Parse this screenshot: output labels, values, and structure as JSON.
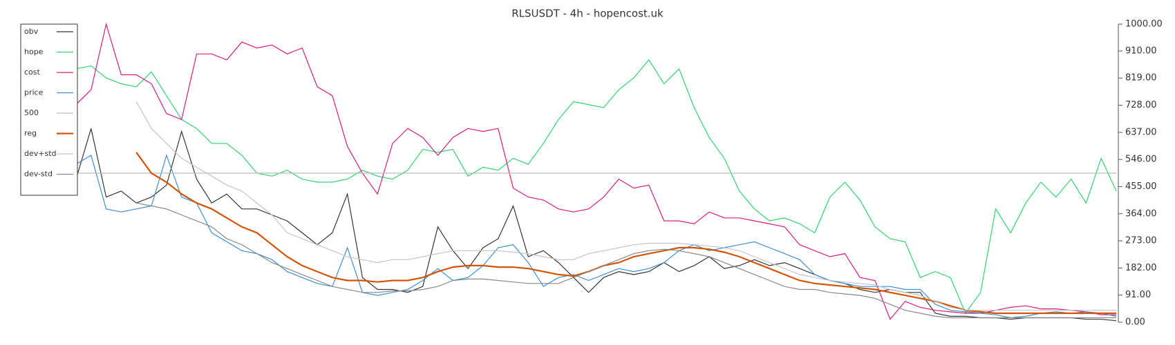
{
  "chart_data": {
    "type": "line",
    "title": "RLSUSDT - 4h - hopencost.uk",
    "ylim": [
      0,
      1000
    ],
    "yticks": [
      {
        "value": 0,
        "label": "0.00"
      },
      {
        "value": 91,
        "label": "91.00"
      },
      {
        "value": 182,
        "label": "182.00"
      },
      {
        "value": 273,
        "label": "273.00"
      },
      {
        "value": 364,
        "label": "364.00"
      },
      {
        "value": 455,
        "label": "455.00"
      },
      {
        "value": 546,
        "label": "546.00"
      },
      {
        "value": 637,
        "label": "637.00"
      },
      {
        "value": 728,
        "label": "728.00"
      },
      {
        "value": 819,
        "label": "819.00"
      },
      {
        "value": 910,
        "label": "910.00"
      },
      {
        "value": 1000,
        "label": "1000.00"
      }
    ],
    "legend": "upper left",
    "series": [
      {
        "name": "obv",
        "color": "#333333",
        "values": [
          480,
          650,
          420,
          440,
          400,
          420,
          460,
          640,
          480,
          400,
          430,
          380,
          380,
          360,
          340,
          300,
          260,
          300,
          430,
          150,
          110,
          110,
          100,
          120,
          320,
          240,
          180,
          250,
          280,
          390,
          220,
          240,
          200,
          150,
          100,
          150,
          170,
          160,
          170,
          200,
          170,
          190,
          220,
          180,
          190,
          210,
          190,
          200,
          180,
          160,
          140,
          130,
          110,
          100,
          110,
          100,
          100,
          30,
          20,
          20,
          15,
          15,
          10,
          15,
          15,
          15,
          15,
          10,
          10,
          5
        ]
      },
      {
        "name": "hope",
        "color": "#2fd36f",
        "values": [
          850,
          860,
          820,
          800,
          790,
          840,
          760,
          680,
          650,
          600,
          600,
          560,
          500,
          490,
          510,
          480,
          470,
          470,
          480,
          510,
          490,
          480,
          510,
          580,
          570,
          580,
          490,
          520,
          510,
          550,
          530,
          600,
          680,
          740,
          730,
          720,
          780,
          820,
          880,
          800,
          850,
          720,
          620,
          550,
          440,
          380,
          340,
          350,
          330,
          300,
          420,
          470,
          410,
          320,
          280,
          270,
          150,
          170,
          150,
          30,
          100,
          380,
          300,
          400,
          470,
          420,
          480,
          400,
          550,
          440
        ]
      },
      {
        "name": "cost",
        "color": "#d81b7a",
        "values": [
          730,
          780,
          1000,
          830,
          830,
          800,
          700,
          680,
          900,
          900,
          880,
          940,
          920,
          930,
          900,
          920,
          790,
          760,
          590,
          500,
          430,
          600,
          650,
          620,
          560,
          620,
          650,
          640,
          650,
          450,
          420,
          410,
          380,
          370,
          380,
          420,
          480,
          450,
          460,
          340,
          340,
          330,
          370,
          350,
          350,
          340,
          330,
          320,
          260,
          240,
          220,
          230,
          150,
          140,
          10,
          70,
          50,
          40,
          35,
          30,
          30,
          40,
          50,
          55,
          45,
          45,
          40,
          35,
          25,
          25
        ]
      },
      {
        "name": "price",
        "color": "#3a8fd8",
        "values": [
          530,
          560,
          380,
          370,
          380,
          390,
          560,
          420,
          400,
          300,
          270,
          240,
          230,
          210,
          170,
          150,
          130,
          120,
          250,
          100,
          90,
          100,
          110,
          140,
          180,
          140,
          150,
          190,
          250,
          260,
          200,
          120,
          150,
          160,
          140,
          160,
          180,
          170,
          180,
          200,
          240,
          260,
          240,
          250,
          260,
          270,
          250,
          230,
          210,
          160,
          140,
          130,
          120,
          120,
          120,
          110,
          110,
          60,
          40,
          35,
          30,
          25,
          15,
          20,
          30,
          35,
          30,
          35,
          30,
          20
        ]
      },
      {
        "name": "500",
        "color": "#bbbbbb",
        "values": [
          500,
          500,
          500,
          500,
          500,
          500,
          500,
          500,
          500,
          500,
          500,
          500,
          500,
          500,
          500,
          500,
          500,
          500,
          500,
          500,
          500,
          500,
          500,
          500,
          500,
          500,
          500,
          500,
          500,
          500,
          500,
          500,
          500,
          500,
          500,
          500,
          500,
          500,
          500,
          500,
          500,
          500,
          500,
          500,
          500,
          500,
          500,
          500,
          500,
          500,
          500,
          500,
          500,
          500,
          500,
          500,
          500,
          500,
          500,
          500,
          500,
          500,
          500,
          500,
          500,
          500,
          500,
          500,
          500,
          500
        ]
      },
      {
        "name": "reg",
        "color": "#d35400",
        "values": [
          null,
          null,
          null,
          null,
          570,
          500,
          470,
          430,
          400,
          380,
          350,
          320,
          300,
          260,
          220,
          190,
          170,
          150,
          140,
          140,
          135,
          140,
          140,
          150,
          170,
          185,
          190,
          190,
          185,
          185,
          180,
          170,
          160,
          155,
          170,
          190,
          200,
          220,
          230,
          240,
          250,
          250,
          245,
          235,
          220,
          200,
          180,
          160,
          140,
          130,
          125,
          120,
          115,
          110,
          100,
          90,
          80,
          70,
          55,
          40,
          35,
          30,
          30,
          30,
          30,
          30,
          30,
          30,
          30,
          30
        ]
      },
      {
        "name": "dev+std",
        "color": "#c4c4c4",
        "values": [
          null,
          null,
          null,
          null,
          740,
          650,
          600,
          550,
          520,
          490,
          460,
          440,
          400,
          360,
          300,
          280,
          260,
          240,
          220,
          210,
          200,
          210,
          210,
          220,
          230,
          240,
          240,
          240,
          240,
          235,
          230,
          220,
          210,
          210,
          230,
          240,
          250,
          260,
          265,
          265,
          265,
          260,
          255,
          250,
          240,
          220,
          200,
          180,
          160,
          150,
          140,
          135,
          130,
          125,
          110,
          100,
          90,
          70,
          50,
          40,
          40,
          40,
          40,
          40,
          40,
          40,
          40,
          40,
          40,
          40
        ]
      },
      {
        "name": "dev-std",
        "color": "#888888",
        "values": [
          null,
          null,
          null,
          null,
          400,
          390,
          380,
          360,
          340,
          320,
          280,
          260,
          230,
          200,
          180,
          160,
          140,
          120,
          110,
          100,
          100,
          105,
          105,
          110,
          120,
          140,
          145,
          145,
          140,
          135,
          130,
          130,
          130,
          150,
          170,
          190,
          210,
          230,
          240,
          245,
          240,
          230,
          220,
          200,
          180,
          160,
          140,
          120,
          110,
          110,
          100,
          95,
          90,
          80,
          60,
          40,
          30,
          20,
          15,
          15,
          15,
          15,
          15,
          15,
          15,
          15,
          15,
          15,
          15,
          15
        ]
      }
    ]
  }
}
